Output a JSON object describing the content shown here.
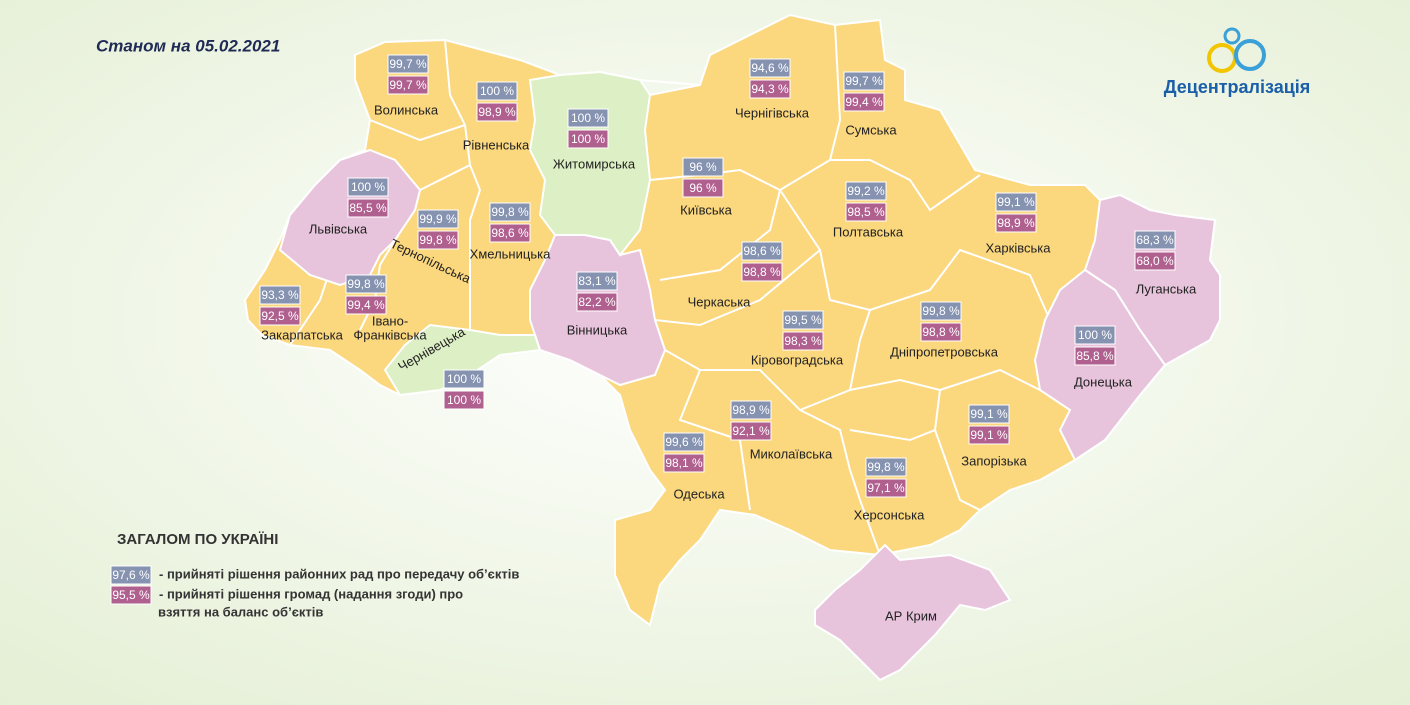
{
  "title": "Станом на 05.02.2021",
  "logo": "Децентралізація",
  "regions": [
    {
      "name": "Волинська",
      "district": "99,7 %",
      "community": "99,7 %"
    },
    {
      "name": "Рівненська",
      "district": "100 %",
      "community": "98,9 %"
    },
    {
      "name": "Житомирська",
      "district": "100 %",
      "community": "100 %"
    },
    {
      "name": "Чернігівська",
      "district": "94,6 %",
      "community": "94,3 %"
    },
    {
      "name": "Сумська",
      "district": "99,7 %",
      "community": "99,4 %"
    },
    {
      "name": "Львівська",
      "district": "100 %",
      "community": "85,5 %"
    },
    {
      "name": "Тернопільська",
      "district": "99,9 %",
      "community": "99,8 %"
    },
    {
      "name": "Хмельницька",
      "district": "99,8 %",
      "community": "98,6 %"
    },
    {
      "name": "Київська",
      "district": "96 %",
      "community": "96 %"
    },
    {
      "name": "Полтавська",
      "district": "99,2 %",
      "community": "98,5 %"
    },
    {
      "name": "Харківська",
      "district": "99,1 %",
      "community": "98,9 %"
    },
    {
      "name": "Луганська",
      "district": "68,3 %",
      "community": "68,0 %"
    },
    {
      "name": "Закарпатська",
      "district": "93,3 %",
      "community": "92,5 %"
    },
    {
      "name": [
        "Івано-",
        "Франківська"
      ],
      "district": "99,8 %",
      "community": "99,4 %"
    },
    {
      "name": "Вінницька",
      "district": "83,1 %",
      "community": "82,2 %"
    },
    {
      "name": "Черкаська",
      "district": "98,6 %",
      "community": "98,8 %"
    },
    {
      "name": "Чернівецька",
      "district": "100 %",
      "community": "100 %"
    },
    {
      "name": "Кіровоградська",
      "district": "99,5 %",
      "community": "98,3 %"
    },
    {
      "name": "Дніпропетровська",
      "district": "99,8 %",
      "community": "98,8 %"
    },
    {
      "name": "Донецька",
      "district": "100 %",
      "community": "85,8 %"
    },
    {
      "name": "Миколаївська",
      "district": "98,9 %",
      "community": "92,1 %"
    },
    {
      "name": "Одеська",
      "district": "99,6 %",
      "community": "98,1 %"
    },
    {
      "name": "Запорізька",
      "district": "99,1 %",
      "community": "99,1 %"
    },
    {
      "name": "Херсонська",
      "district": "99,8 %",
      "community": "97,1 %"
    },
    {
      "name": "АР Крим"
    }
  ],
  "summary": {
    "heading": "ЗАГАЛОМ ПО УКРАЇНІ",
    "items": [
      {
        "value": "97,6 %",
        "text": [
          "- прийняті рішення районних рад про передачу об’єктів"
        ]
      },
      {
        "value": "95,5 %",
        "text": [
          "- прийняті рішення громад (надання згоди) про",
          "взяття на баланс об’єктів"
        ]
      }
    ]
  }
}
